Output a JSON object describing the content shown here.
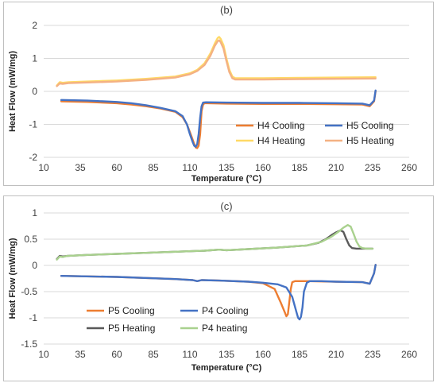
{
  "chart_data": [
    {
      "id": "b",
      "type": "line",
      "title": "(b)",
      "xlabel": "Temperature  (°C)",
      "ylabel": "Heat Flow (mW/mg)",
      "xlim": [
        10,
        260
      ],
      "ylim": [
        -2,
        2
      ],
      "xticks": [
        10,
        35,
        60,
        85,
        110,
        135,
        160,
        185,
        210,
        235,
        260
      ],
      "yticks": [
        -2,
        -1,
        0,
        1,
        2
      ],
      "grid": "horizontal",
      "legend_position": "bottom-right",
      "series": [
        {
          "name": "H4 Cooling",
          "color": "#ED7D31",
          "x": [
            22,
            40,
            60,
            70,
            80,
            90,
            100,
            105,
            108,
            111,
            113,
            114,
            115,
            116,
            117,
            118,
            119,
            120,
            122,
            135,
            160,
            185,
            210,
            228,
            233,
            236,
            237
          ],
          "y": [
            -0.3,
            -0.32,
            -0.36,
            -0.4,
            -0.45,
            -0.52,
            -0.62,
            -0.78,
            -1.0,
            -1.35,
            -1.6,
            -1.7,
            -1.72,
            -1.65,
            -1.3,
            -0.6,
            -0.4,
            -0.36,
            -0.36,
            -0.37,
            -0.38,
            -0.38,
            -0.39,
            -0.4,
            -0.45,
            -0.3,
            0.0
          ]
        },
        {
          "name": "H5 Cooling",
          "color": "#4472C4",
          "x": [
            22,
            40,
            60,
            70,
            80,
            90,
            100,
            105,
            108,
            110,
            112,
            113,
            114,
            115,
            116,
            117,
            118,
            119,
            121,
            135,
            160,
            185,
            210,
            228,
            233,
            236,
            237
          ],
          "y": [
            -0.26,
            -0.28,
            -0.32,
            -0.36,
            -0.42,
            -0.5,
            -0.6,
            -0.75,
            -1.0,
            -1.3,
            -1.55,
            -1.65,
            -1.68,
            -1.6,
            -1.3,
            -0.8,
            -0.45,
            -0.34,
            -0.33,
            -0.34,
            -0.35,
            -0.35,
            -0.36,
            -0.37,
            -0.42,
            -0.28,
            0.03
          ]
        },
        {
          "name": "H4 Heating",
          "color": "#FFD966",
          "x": [
            19,
            21,
            23,
            27,
            40,
            60,
            80,
            100,
            110,
            115,
            120,
            124,
            127,
            129,
            130,
            131,
            133,
            135,
            137,
            139,
            141,
            145,
            160,
            185,
            210,
            237
          ],
          "y": [
            0.18,
            0.28,
            0.26,
            0.28,
            0.3,
            0.33,
            0.38,
            0.45,
            0.55,
            0.65,
            0.85,
            1.15,
            1.45,
            1.62,
            1.65,
            1.6,
            1.4,
            1.0,
            0.65,
            0.45,
            0.4,
            0.4,
            0.4,
            0.41,
            0.42,
            0.43
          ]
        },
        {
          "name": "H5 Heating",
          "color": "#F4B183",
          "x": [
            19,
            21,
            23,
            27,
            40,
            60,
            80,
            100,
            110,
            115,
            120,
            124,
            127,
            129,
            130,
            131,
            133,
            135,
            137,
            139,
            141,
            145,
            160,
            185,
            210,
            237
          ],
          "y": [
            0.16,
            0.24,
            0.23,
            0.25,
            0.27,
            0.3,
            0.35,
            0.42,
            0.52,
            0.62,
            0.8,
            1.08,
            1.38,
            1.52,
            1.55,
            1.5,
            1.3,
            0.92,
            0.58,
            0.4,
            0.36,
            0.36,
            0.36,
            0.37,
            0.38,
            0.39
          ]
        }
      ]
    },
    {
      "id": "c",
      "type": "line",
      "title": "(c)",
      "xlabel": "Temperature  (°C)",
      "ylabel": "Heat Flow (mW/mg)",
      "xlim": [
        10,
        260
      ],
      "ylim": [
        -1.5,
        1
      ],
      "xticks": [
        10,
        35,
        60,
        85,
        110,
        135,
        160,
        185,
        210,
        235,
        260
      ],
      "yticks": [
        -1.5,
        -1,
        -0.5,
        0,
        0.5,
        1
      ],
      "grid": "horizontal",
      "legend_position": "bottom-left",
      "series": [
        {
          "name": "P5 Cooling",
          "color": "#ED7D31",
          "x": [
            22,
            60,
            100,
            112,
            115,
            118,
            130,
            150,
            160,
            168,
            172,
            175,
            176,
            177,
            178,
            179,
            180,
            182,
            190,
            210,
            228,
            233,
            236,
            237
          ],
          "y": [
            -0.2,
            -0.22,
            -0.26,
            -0.28,
            -0.3,
            -0.28,
            -0.29,
            -0.31,
            -0.34,
            -0.45,
            -0.7,
            -0.9,
            -0.97,
            -0.93,
            -0.7,
            -0.45,
            -0.32,
            -0.3,
            -0.3,
            -0.31,
            -0.32,
            -0.35,
            -0.15,
            0.01
          ]
        },
        {
          "name": "P4 Cooling",
          "color": "#4472C4",
          "x": [
            22,
            60,
            100,
            112,
            115,
            118,
            130,
            150,
            160,
            170,
            176,
            180,
            183,
            184,
            185,
            186,
            187,
            188,
            190,
            192,
            200,
            210,
            228,
            233,
            236,
            237
          ],
          "y": [
            -0.2,
            -0.22,
            -0.26,
            -0.28,
            -0.3,
            -0.28,
            -0.29,
            -0.31,
            -0.33,
            -0.36,
            -0.42,
            -0.6,
            -0.9,
            -1.0,
            -1.03,
            -0.98,
            -0.8,
            -0.5,
            -0.33,
            -0.3,
            -0.3,
            -0.31,
            -0.32,
            -0.35,
            -0.15,
            0.01
          ]
        },
        {
          "name": "P5 Heating",
          "color": "#595959",
          "x": [
            19,
            21,
            23,
            26,
            40,
            60,
            80,
            100,
            120,
            130,
            135,
            150,
            170,
            190,
            198,
            203,
            207,
            210,
            213,
            215,
            217,
            219,
            221,
            224,
            228,
            235
          ],
          "y": [
            0.12,
            0.18,
            0.17,
            0.18,
            0.2,
            0.22,
            0.24,
            0.26,
            0.28,
            0.3,
            0.29,
            0.31,
            0.34,
            0.38,
            0.43,
            0.5,
            0.58,
            0.63,
            0.67,
            0.64,
            0.5,
            0.38,
            0.33,
            0.32,
            0.32,
            0.32
          ]
        },
        {
          "name": "P4 heating",
          "color": "#A9D18E",
          "x": [
            19,
            21,
            23,
            26,
            40,
            60,
            80,
            100,
            120,
            130,
            135,
            150,
            170,
            190,
            200,
            207,
            212,
            215,
            218,
            220,
            222,
            224,
            226,
            228,
            231,
            235
          ],
          "y": [
            0.11,
            0.17,
            0.16,
            0.18,
            0.2,
            0.22,
            0.24,
            0.26,
            0.28,
            0.3,
            0.29,
            0.31,
            0.34,
            0.38,
            0.45,
            0.55,
            0.65,
            0.72,
            0.77,
            0.74,
            0.6,
            0.45,
            0.36,
            0.33,
            0.32,
            0.32
          ]
        }
      ]
    }
  ]
}
